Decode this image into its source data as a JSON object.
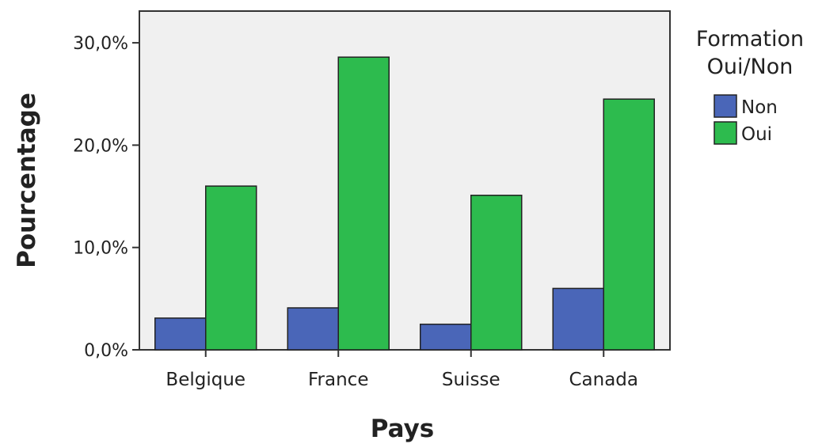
{
  "chart_data": {
    "type": "bar",
    "title": "",
    "xlabel": "Pays",
    "ylabel": "Pourcentage",
    "categories": [
      "Belgique",
      "France",
      "Suisse",
      "Canada"
    ],
    "series": [
      {
        "name": "Non",
        "values": [
          3.1,
          4.1,
          2.5,
          6.0
        ],
        "color": "#4a66b8"
      },
      {
        "name": "Oui",
        "values": [
          16.0,
          28.6,
          15.1,
          24.5
        ],
        "color": "#2dbb4e"
      }
    ],
    "ylim": [
      0,
      33.1
    ],
    "yticks": [
      0,
      10,
      20,
      30
    ],
    "ytick_labels": [
      "0,0%",
      "10,0%",
      "20,0%",
      "30,0%"
    ],
    "grid": false,
    "plot_background": "#f0f0f0",
    "legend": {
      "title_lines": [
        "Formation",
        "Oui/Non"
      ],
      "placement": "right"
    }
  }
}
